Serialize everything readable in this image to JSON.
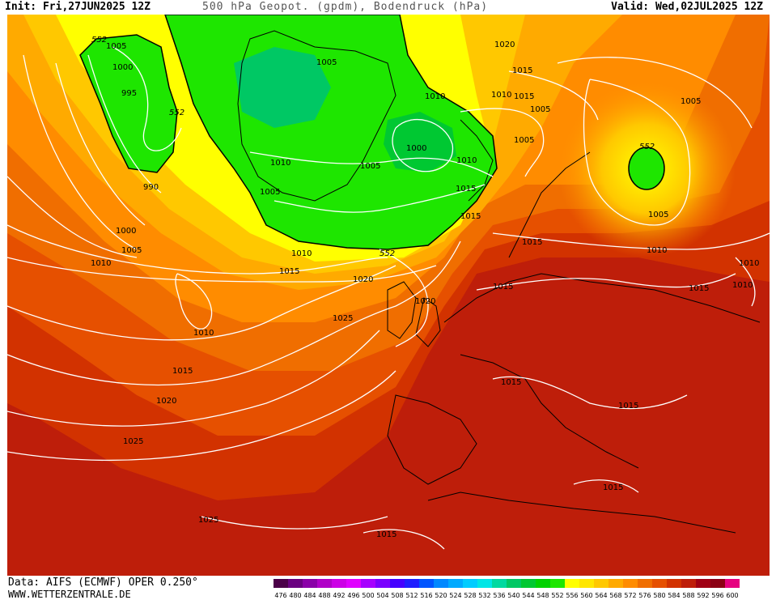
{
  "header": {
    "init": "Init: Fri,27JUN2025 12Z",
    "title": "500 hPa Geopot. (gpdm), Bodendruck (hPa)",
    "valid": "Valid: Wed,02JUL2025 12Z"
  },
  "footer": {
    "source": "Data: AIFS (ECMWF) OPER 0.250°",
    "website": "WWW.WETTERZENTRALE.DE"
  },
  "legend": {
    "values": [
      "476",
      "480",
      "484",
      "488",
      "492",
      "496",
      "500",
      "504",
      "508",
      "512",
      "516",
      "520",
      "524",
      "528",
      "532",
      "536",
      "540",
      "544",
      "548",
      "552",
      "556",
      "560",
      "564",
      "568",
      "572",
      "576",
      "580",
      "584",
      "588",
      "592",
      "596",
      "600"
    ],
    "colors": [
      "#4b0048",
      "#6a0080",
      "#8a00a8",
      "#b000c8",
      "#cc00e6",
      "#e000ff",
      "#a600ff",
      "#7a00ff",
      "#4400ff",
      "#1e1eff",
      "#0055ff",
      "#0088ff",
      "#00aaff",
      "#00ccff",
      "#00e6e6",
      "#00d9a0",
      "#00c864",
      "#00c832",
      "#00d200",
      "#1ee600",
      "#ffff00",
      "#ffe600",
      "#ffc800",
      "#ffaa00",
      "#ff8c00",
      "#f06e00",
      "#e65000",
      "#d23200",
      "#be1e0a",
      "#a00014",
      "#8c0014",
      "#e60080"
    ]
  },
  "map": {
    "geopotential_contour_labels": [
      "552",
      "552",
      "552",
      "552"
    ],
    "isobar_labels": [
      "1005",
      "1000",
      "995",
      "990",
      "1000",
      "1005",
      "1010",
      "1010",
      "1005",
      "1005",
      "1000",
      "1005",
      "1010",
      "1010",
      "1015",
      "1010",
      "1015",
      "1020",
      "1020",
      "1025",
      "1010",
      "1015",
      "1020",
      "1025",
      "1025",
      "1015",
      "1020",
      "1015",
      "1010",
      "1005",
      "1005",
      "1005",
      "1010",
      "1015",
      "1005",
      "1010",
      "1015",
      "1010",
      "1015",
      "1015",
      "1015",
      "1015",
      "1015",
      "1015"
    ]
  }
}
